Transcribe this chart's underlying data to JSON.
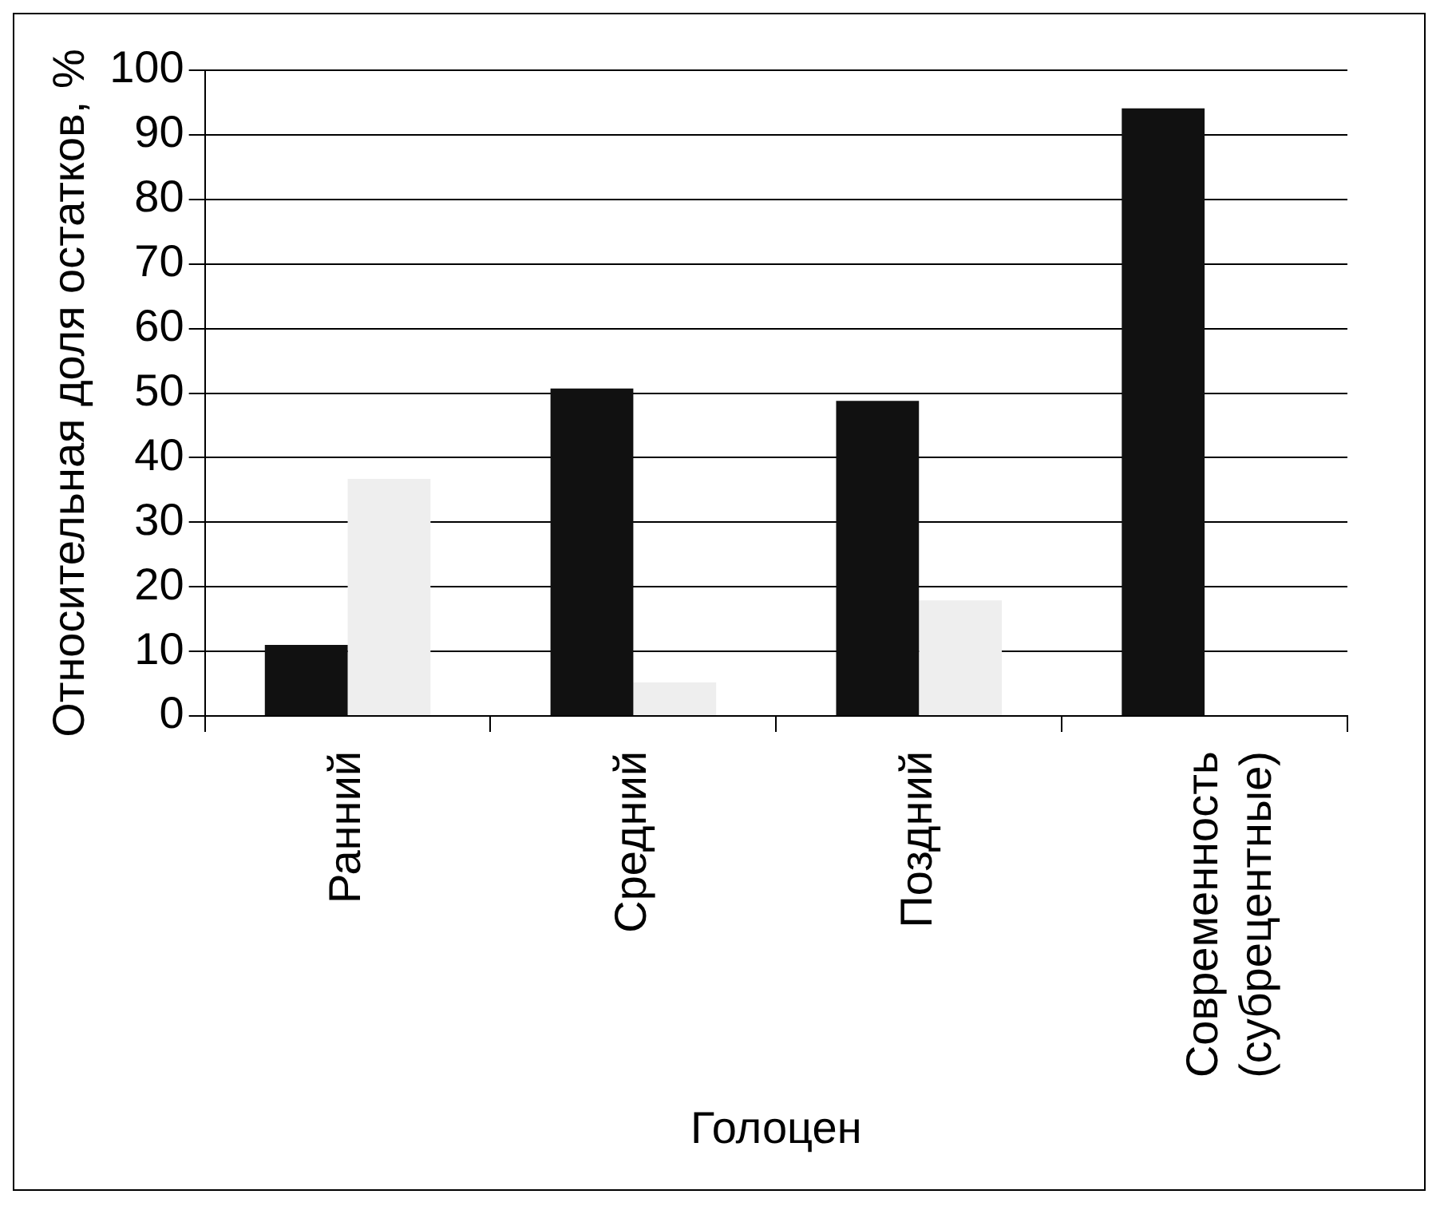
{
  "chart_data": {
    "type": "bar",
    "xlabel": "Голоцен",
    "ylabel": "Относительная доля остатков, %",
    "categories": [
      "Ранний",
      "Средний",
      "Поздний",
      "Современность\n(субрецентные)"
    ],
    "series": [
      {
        "color": "#111111",
        "values": [
          11,
          50.7,
          48.8,
          94.1
        ]
      },
      {
        "color": "#eeeeee",
        "values": [
          36.7,
          5.2,
          17.9,
          null
        ]
      }
    ],
    "ylim": [
      0,
      100
    ],
    "yticks": [
      0,
      10,
      20,
      30,
      40,
      50,
      60,
      70,
      80,
      90,
      100
    ],
    "grid": "y",
    "legend": false
  }
}
